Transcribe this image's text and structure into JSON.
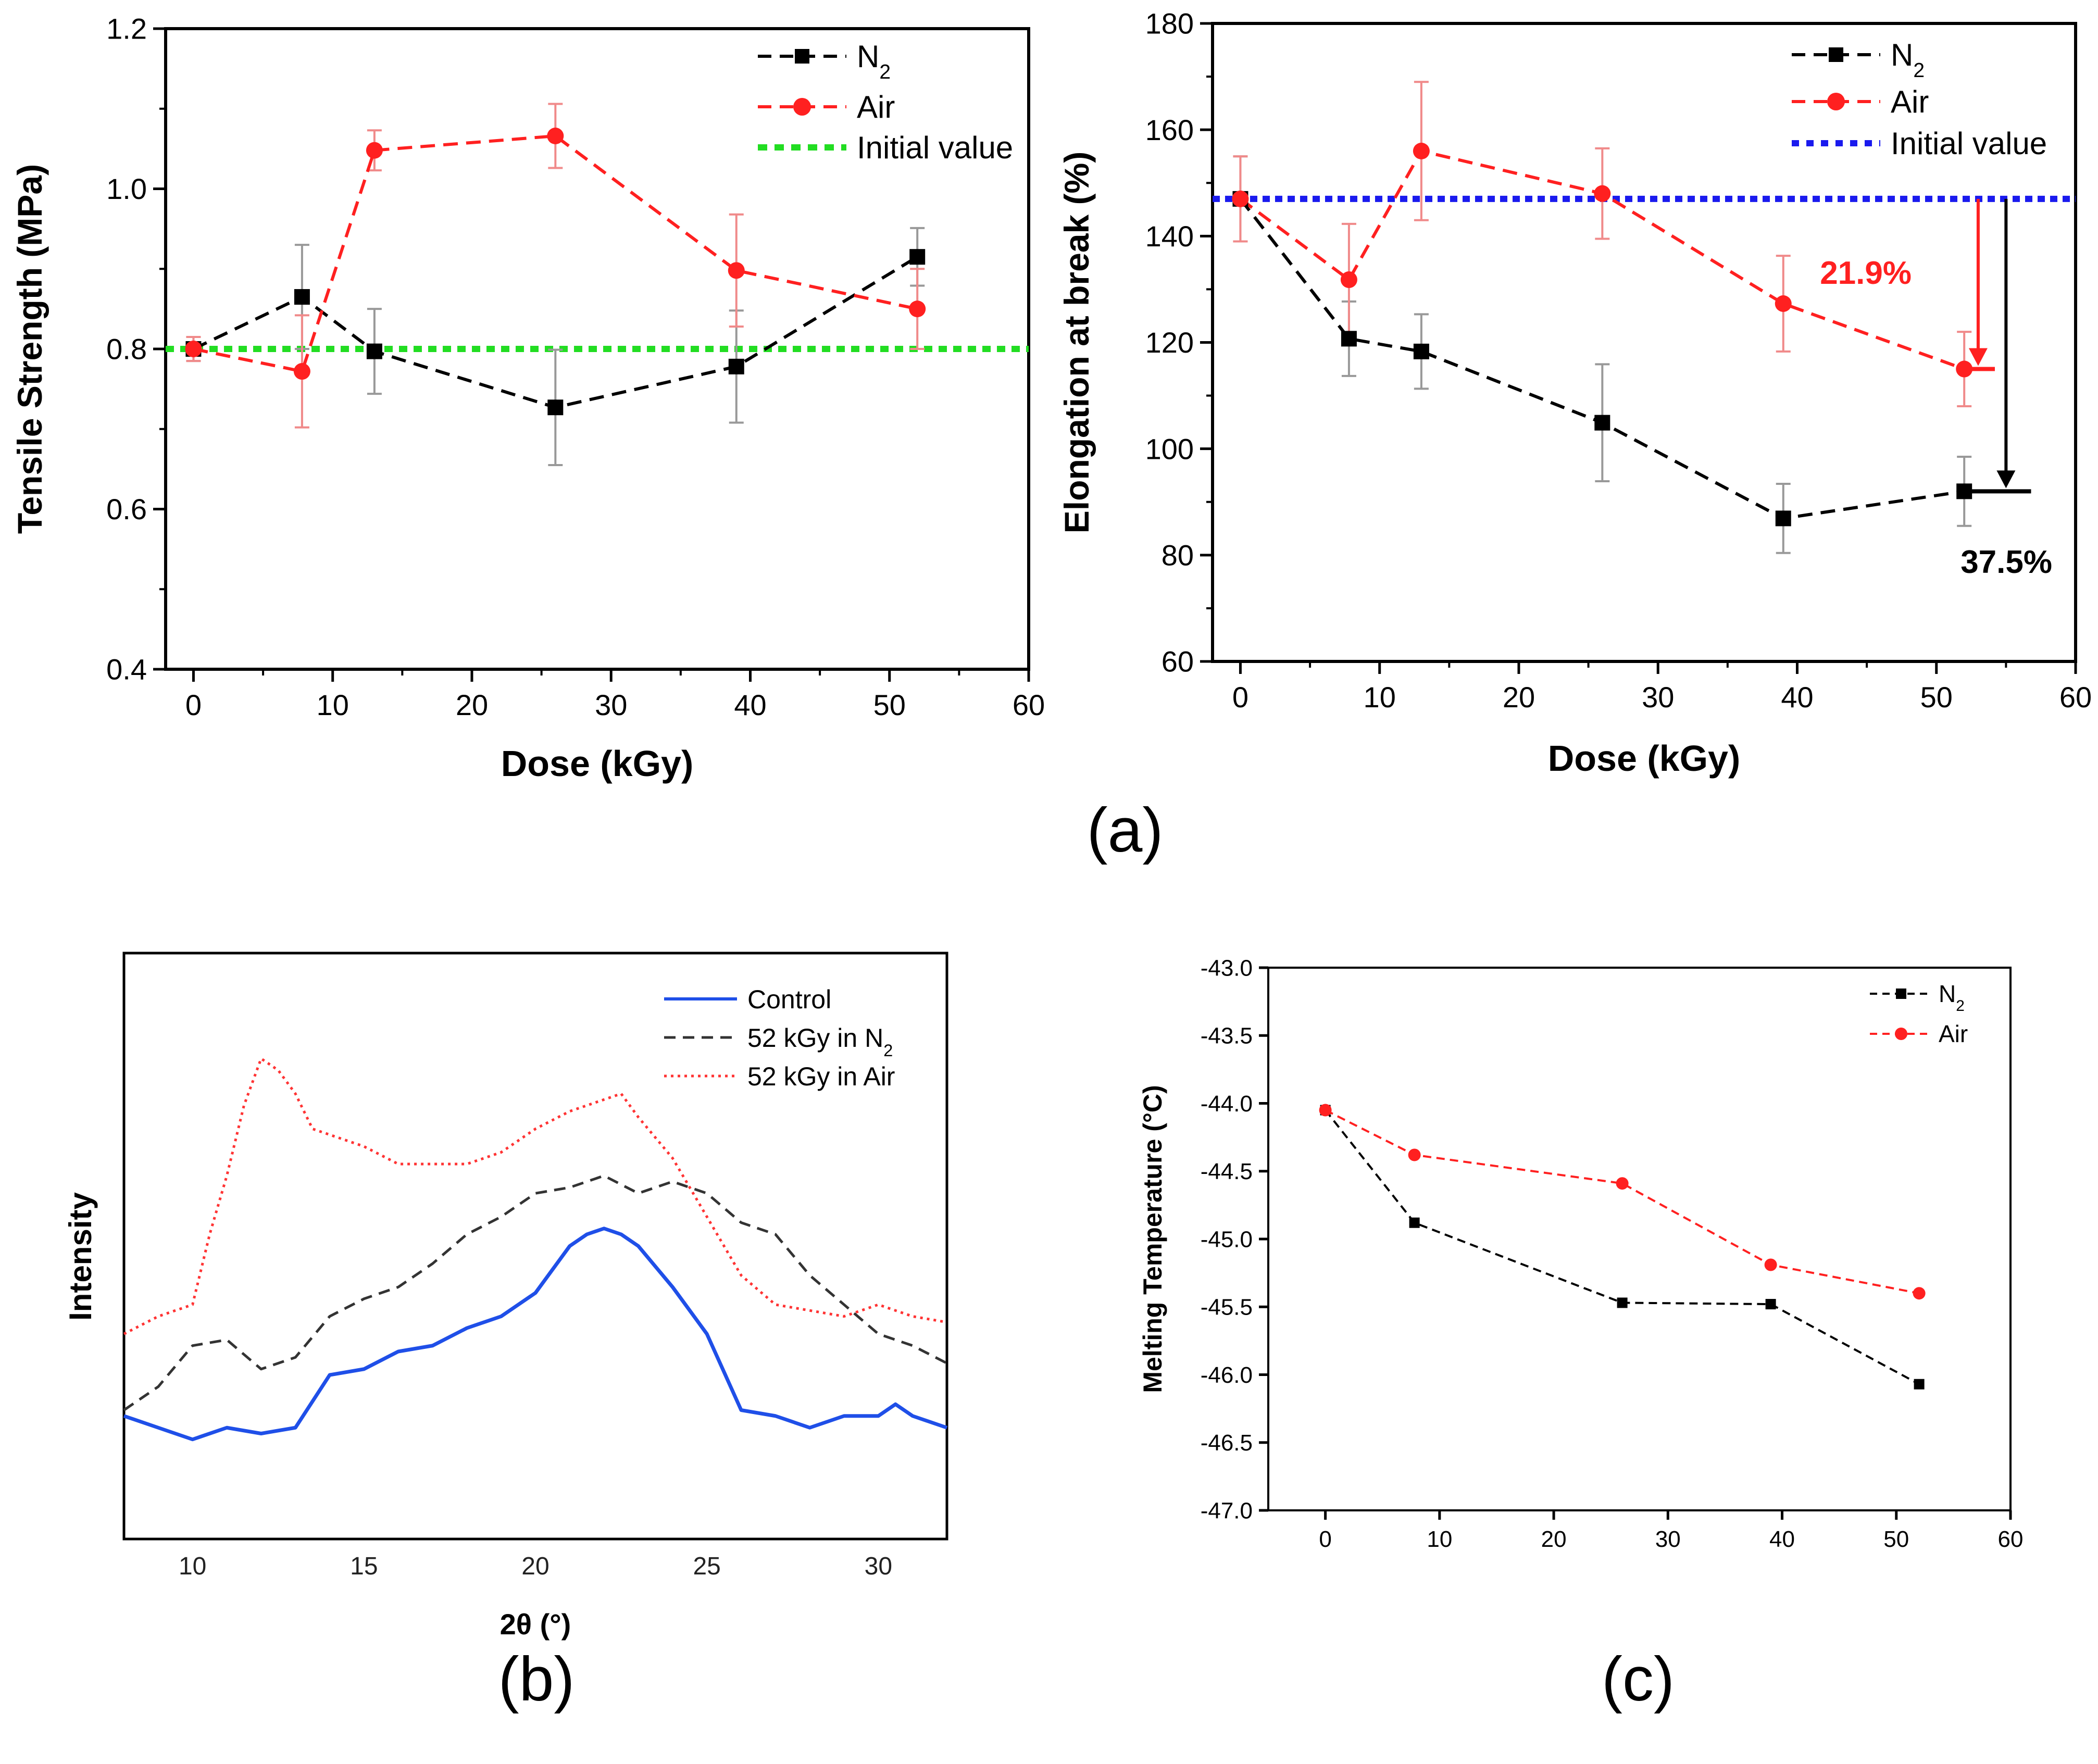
{
  "panel_labels": [
    "(a)",
    "(b)",
    "(c)"
  ],
  "colors": {
    "n2": "#000000",
    "air": "#ff2020",
    "initial_a1": "#22dd22",
    "initial_a2": "#1a1aee",
    "control": "#1f4fe8",
    "n2_xrd": "#333333",
    "air_xrd": "#ff3333",
    "err_n2": "#999999",
    "err_air": "#f08a8a"
  },
  "chart_data": [
    {
      "id": "tensile",
      "type": "line",
      "xlabel": "Dose (kGy)",
      "ylabel": "Tensile Strength (MPa)",
      "xlim": [
        -2,
        60
      ],
      "ylim": [
        0.4,
        1.2
      ],
      "xticks": [
        0,
        10,
        20,
        30,
        40,
        50,
        60
      ],
      "xtick_labels": [
        "0",
        "10",
        "20",
        "30",
        "40",
        "50",
        "60"
      ],
      "yticks": [
        0.4,
        0.6,
        0.8,
        1.0,
        1.2
      ],
      "ytick_labels": [
        "0.4",
        "0.6",
        "0.8",
        "1.0",
        "1.2"
      ],
      "legend": [
        "N2",
        "Air",
        "Initial value"
      ],
      "initial_value": 0.8,
      "series": [
        {
          "name": "N2",
          "x": [
            0,
            7.8,
            13,
            26,
            39,
            52
          ],
          "y": [
            0.8,
            0.865,
            0.797,
            0.727,
            0.778,
            0.915
          ],
          "err": [
            0.015,
            0.065,
            0.053,
            0.072,
            0.07,
            0.036
          ]
        },
        {
          "name": "Air",
          "x": [
            0,
            7.8,
            13,
            26,
            39,
            52
          ],
          "y": [
            0.8,
            0.772,
            1.048,
            1.066,
            0.898,
            0.85
          ],
          "err": [
            0.015,
            0.07,
            0.025,
            0.04,
            0.07,
            0.05
          ]
        }
      ]
    },
    {
      "id": "elongation",
      "type": "line",
      "xlabel": "Dose (kGy)",
      "ylabel": "Elongation at break (%)",
      "xlim": [
        -2,
        60
      ],
      "ylim": [
        60,
        180
      ],
      "xticks": [
        0,
        10,
        20,
        30,
        40,
        50,
        60
      ],
      "xtick_labels": [
        "0",
        "10",
        "20",
        "30",
        "40",
        "50",
        "60"
      ],
      "yticks": [
        60,
        80,
        100,
        120,
        140,
        160,
        180
      ],
      "ytick_labels": [
        "60",
        "80",
        "100",
        "120",
        "140",
        "160",
        "180"
      ],
      "legend": [
        "N2",
        "Air",
        "Initial value"
      ],
      "initial_value": 147,
      "annotations": [
        "21.9%",
        "37.5%"
      ],
      "series": [
        {
          "name": "N2",
          "x": [
            0,
            7.8,
            13,
            26,
            39,
            52
          ],
          "y": [
            147,
            120.7,
            118.3,
            104.9,
            86.9,
            92.0
          ],
          "err": [
            8,
            7,
            7,
            11,
            6.5,
            6.5
          ]
        },
        {
          "name": "Air",
          "x": [
            0,
            7.8,
            13,
            26,
            39,
            52
          ],
          "y": [
            147,
            131.8,
            156,
            148,
            127.3,
            115.0
          ],
          "err": [
            8,
            10.5,
            13,
            8.5,
            9,
            7
          ]
        }
      ]
    },
    {
      "id": "xrd",
      "type": "line",
      "xlabel": "2θ (°)",
      "ylabel": "Intensity",
      "xlim": [
        8,
        32
      ],
      "xticks": [
        10,
        15,
        20,
        25,
        30
      ],
      "xtick_labels": [
        "10",
        "15",
        "20",
        "25",
        "30"
      ],
      "legend": [
        "Control",
        "52 kGy in N2",
        "52 kGy in Air"
      ],
      "series": [
        {
          "name": "Control",
          "x": [
            8,
            9,
            10,
            11,
            12,
            13,
            14,
            15,
            16,
            17,
            18,
            19,
            20,
            21,
            21.5,
            22,
            22.5,
            23,
            24,
            25,
            26,
            27,
            28,
            29,
            30,
            30.5,
            31,
            32
          ],
          "y": [
            0.21,
            0.19,
            0.17,
            0.19,
            0.18,
            0.19,
            0.28,
            0.29,
            0.32,
            0.33,
            0.36,
            0.38,
            0.42,
            0.5,
            0.52,
            0.53,
            0.52,
            0.5,
            0.43,
            0.35,
            0.22,
            0.21,
            0.19,
            0.21,
            0.21,
            0.23,
            0.21,
            0.19
          ]
        },
        {
          "name": "52 kGy in N2",
          "x": [
            8,
            8.5,
            9,
            10,
            11,
            12,
            13,
            14,
            15,
            16,
            17,
            18,
            19,
            20,
            21,
            22,
            23,
            24,
            25,
            26,
            27,
            28,
            29,
            30,
            31,
            32
          ],
          "y": [
            0.22,
            0.24,
            0.26,
            0.33,
            0.34,
            0.29,
            0.31,
            0.38,
            0.41,
            0.43,
            0.47,
            0.52,
            0.55,
            0.59,
            0.6,
            0.62,
            0.59,
            0.61,
            0.59,
            0.54,
            0.52,
            0.45,
            0.4,
            0.35,
            0.33,
            0.3
          ]
        },
        {
          "name": "52 kGy in Air",
          "x": [
            8,
            9,
            10,
            10.5,
            11,
            11.5,
            12,
            12.5,
            13,
            13.5,
            14,
            15,
            16,
            17,
            18,
            19,
            20,
            21,
            22,
            22.5,
            23,
            24,
            25,
            26,
            27,
            28,
            29,
            30,
            31,
            32
          ],
          "y": [
            0.35,
            0.38,
            0.4,
            0.52,
            0.62,
            0.74,
            0.82,
            0.8,
            0.76,
            0.7,
            0.69,
            0.67,
            0.64,
            0.64,
            0.64,
            0.66,
            0.7,
            0.73,
            0.75,
            0.76,
            0.72,
            0.65,
            0.55,
            0.45,
            0.4,
            0.39,
            0.38,
            0.4,
            0.38,
            0.37
          ]
        }
      ]
    },
    {
      "id": "melting",
      "type": "line",
      "xlabel": "",
      "ylabel": "Melting Temperature (°C)",
      "xlim": [
        -5,
        60
      ],
      "ylim": [
        -47.0,
        -43.0
      ],
      "xticks": [
        0,
        10,
        20,
        30,
        40,
        50,
        60
      ],
      "xtick_labels": [
        "0",
        "10",
        "20",
        "30",
        "40",
        "50",
        "60"
      ],
      "yticks": [
        -47.0,
        -46.5,
        -46.0,
        -45.5,
        -45.0,
        -44.5,
        -44.0,
        -43.5,
        -43.0
      ],
      "ytick_labels": [
        "-47.0",
        "-46.5",
        "-46.0",
        "-45.5",
        "-45.0",
        "-44.5",
        "-44.0",
        "-43.5",
        "-43.0"
      ],
      "legend": [
        "N2",
        "Air"
      ],
      "series": [
        {
          "name": "N2",
          "x": [
            0,
            7.8,
            26,
            39,
            52
          ],
          "y": [
            -44.05,
            -44.88,
            -45.47,
            -45.48,
            -46.07
          ]
        },
        {
          "name": "Air",
          "x": [
            0,
            7.8,
            26,
            39,
            52
          ],
          "y": [
            -44.05,
            -44.38,
            -44.59,
            -45.19,
            -45.4
          ]
        }
      ]
    }
  ]
}
